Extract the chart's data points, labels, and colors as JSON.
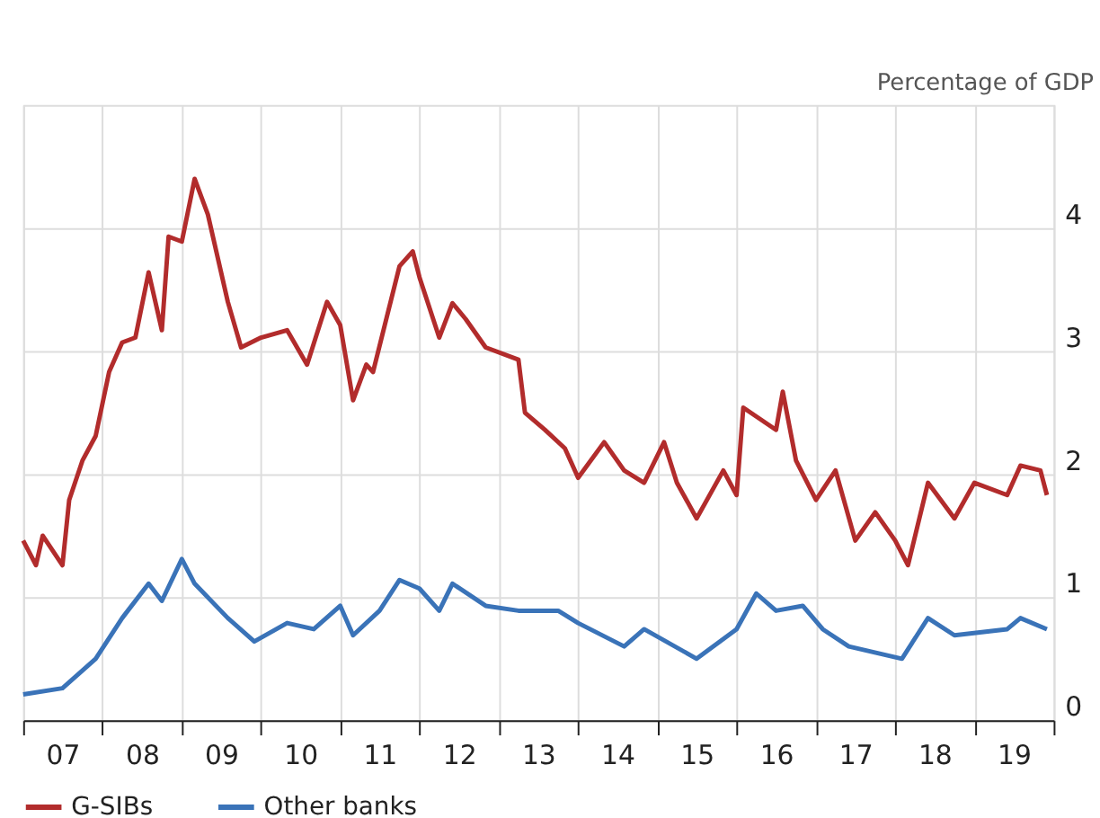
{
  "chart_data": {
    "type": "line",
    "ylabel": "Percentage of GDP",
    "xlim": [
      "2007-01",
      "2020-01"
    ],
    "xticks": [
      {
        "value": "2007-01",
        "label": null
      },
      {
        "value": "2008-01",
        "label": null
      },
      {
        "value": "2009-01",
        "label": null
      },
      {
        "value": "2010-01",
        "label": null
      },
      {
        "value": "2011-01",
        "label": null
      },
      {
        "value": "2012-01",
        "label": null
      },
      {
        "value": "2013-01",
        "label": null
      },
      {
        "value": "2014-01",
        "label": null
      },
      {
        "value": "2015-01",
        "label": null
      },
      {
        "value": "2016-01",
        "label": null
      },
      {
        "value": "2017-01",
        "label": null
      },
      {
        "value": "2018-01",
        "label": null
      },
      {
        "value": "2019-01",
        "label": null
      },
      {
        "value": "2020-01",
        "label": null
      },
      {
        "value": "2007-07",
        "label": "07"
      },
      {
        "value": "2008-07",
        "label": "08"
      },
      {
        "value": "2009-07",
        "label": "09"
      },
      {
        "value": "2010-07",
        "label": "10"
      },
      {
        "value": "2011-07",
        "label": "11"
      },
      {
        "value": "2012-07",
        "label": "12"
      },
      {
        "value": "2013-07",
        "label": "13"
      },
      {
        "value": "2014-07",
        "label": "14"
      },
      {
        "value": "2015-07",
        "label": "15"
      },
      {
        "value": "2016-07",
        "label": "16"
      },
      {
        "value": "2017-07",
        "label": "17"
      },
      {
        "value": "2018-07",
        "label": "18"
      },
      {
        "value": "2019-07",
        "label": "19"
      }
    ],
    "ylim": [
      0,
      5
    ],
    "yticks": [
      0,
      1,
      2,
      3,
      4
    ],
    "grid": true,
    "legend": "bottom",
    "marker": "none",
    "line_style": "solid",
    "series": [
      {
        "name": "G-SIBs",
        "color": "#b22c2c",
        "x": [
          "2007-01",
          "2007-03",
          "2007-04",
          "2007-07",
          "2007-08",
          "2007-10",
          "2007-12",
          "2008-02",
          "2008-04",
          "2008-06",
          "2008-08",
          "2008-10",
          "2008-11",
          "2009-01",
          "2009-03",
          "2009-05",
          "2009-08",
          "2009-10",
          "2010-01",
          "2010-05",
          "2010-08",
          "2010-11",
          "2011-01",
          "2011-03",
          "2011-05",
          "2011-06",
          "2011-10",
          "2011-12",
          "2012-01",
          "2012-04",
          "2012-06",
          "2012-08",
          "2012-11",
          "2013-04",
          "2013-05",
          "2013-08",
          "2013-11",
          "2014-01",
          "2014-05",
          "2014-08",
          "2014-11",
          "2015-02",
          "2015-04",
          "2015-07",
          "2015-11",
          "2016-01",
          "2016-02",
          "2016-07",
          "2016-08",
          "2016-10",
          "2017-01",
          "2017-04",
          "2017-07",
          "2017-10",
          "2018-01",
          "2018-03",
          "2018-06",
          "2018-10",
          "2019-01",
          "2019-06",
          "2019-08",
          "2019-11",
          "2019-12"
        ],
        "values": [
          1.46,
          1.26,
          1.5,
          1.26,
          1.79,
          2.11,
          2.31,
          2.83,
          3.07,
          3.11,
          3.64,
          3.17,
          3.93,
          3.89,
          4.4,
          4.11,
          3.4,
          3.03,
          3.11,
          3.17,
          2.89,
          3.4,
          3.21,
          2.6,
          2.89,
          2.83,
          3.69,
          3.81,
          3.6,
          3.11,
          3.39,
          3.26,
          3.03,
          2.93,
          2.5,
          2.36,
          2.21,
          1.97,
          2.26,
          2.03,
          1.93,
          2.26,
          1.93,
          1.64,
          2.03,
          1.83,
          2.54,
          2.36,
          2.67,
          2.11,
          1.79,
          2.03,
          1.46,
          1.69,
          1.46,
          1.26,
          1.93,
          1.64,
          1.93,
          1.83,
          2.07,
          2.03,
          1.83
        ]
      },
      {
        "name": "Other banks",
        "color": "#3a73b8",
        "x": [
          "2007-01",
          "2007-07",
          "2007-12",
          "2008-04",
          "2008-08",
          "2008-10",
          "2009-01",
          "2009-03",
          "2009-08",
          "2009-12",
          "2010-05",
          "2010-09",
          "2011-01",
          "2011-03",
          "2011-07",
          "2011-10",
          "2012-01",
          "2012-04",
          "2012-06",
          "2012-11",
          "2013-04",
          "2013-10",
          "2014-01",
          "2014-08",
          "2014-11",
          "2015-07",
          "2016-01",
          "2016-04",
          "2016-07",
          "2016-11",
          "2017-02",
          "2017-06",
          "2018-02",
          "2018-06",
          "2018-10",
          "2019-06",
          "2019-08",
          "2019-12"
        ],
        "values": [
          0.21,
          0.26,
          0.5,
          0.83,
          1.11,
          0.97,
          1.31,
          1.11,
          0.83,
          0.64,
          0.79,
          0.74,
          0.93,
          0.69,
          0.89,
          1.14,
          1.07,
          0.89,
          1.11,
          0.93,
          0.89,
          0.89,
          0.79,
          0.6,
          0.74,
          0.5,
          0.74,
          1.03,
          0.89,
          0.93,
          0.74,
          0.6,
          0.5,
          0.83,
          0.69,
          0.74,
          0.83,
          0.74
        ]
      }
    ]
  }
}
